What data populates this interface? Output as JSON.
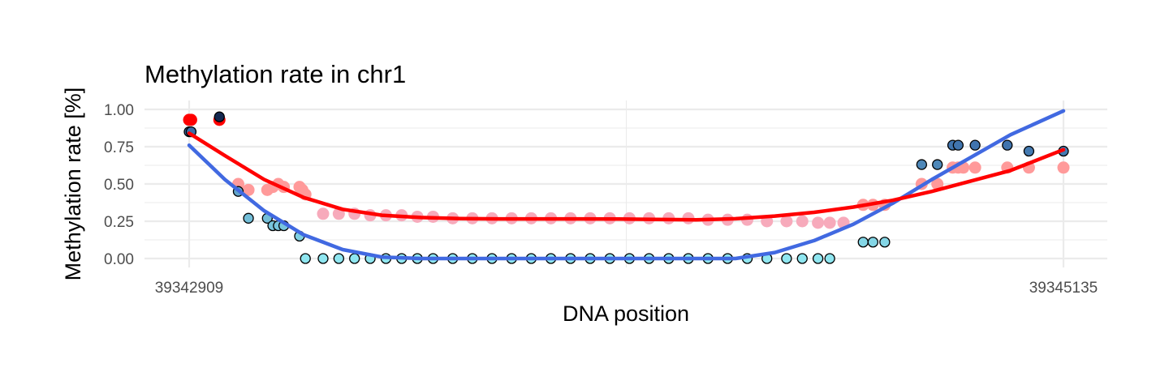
{
  "chart_data": {
    "type": "scatter",
    "title": "Methylation rate in chr1",
    "xlabel": "DNA position",
    "ylabel": "Methylation rate [%]",
    "xlim": [
      39342909,
      39345135
    ],
    "ylim": [
      0,
      1
    ],
    "x_ticks": [
      39342909,
      39345135
    ],
    "y_ticks": [
      "0.00",
      "0.25",
      "0.50",
      "0.75",
      "1.00"
    ],
    "grid": true,
    "legend": "none",
    "colors": {
      "series_a_points": "#ff9a9a",
      "series_a_points_mid": "#f7aabb",
      "series_a_fit": "#ff0000",
      "series_b_points_low": "#8fe6f0",
      "series_b_points_high": "#6aaad4",
      "series_b_fit": "#4169e1",
      "point_outline": "#000000",
      "grid": "#ebebeb"
    },
    "series": [
      {
        "points": [
          [
            39342909,
            0.93
          ],
          [
            39342914,
            0.93
          ],
          [
            39342986,
            0.93
          ],
          [
            39343034,
            0.5
          ],
          [
            39343060,
            0.46
          ],
          [
            39343108,
            0.46
          ],
          [
            39343122,
            0.48
          ],
          [
            39343136,
            0.5
          ],
          [
            39343150,
            0.48
          ],
          [
            39343190,
            0.48
          ],
          [
            39343197,
            0.46
          ],
          [
            39343205,
            0.43
          ],
          [
            39343250,
            0.3
          ],
          [
            39343290,
            0.3
          ],
          [
            39343330,
            0.3
          ],
          [
            39343370,
            0.29
          ],
          [
            39343410,
            0.29
          ],
          [
            39343450,
            0.29
          ],
          [
            39343490,
            0.28
          ],
          [
            39343530,
            0.28
          ],
          [
            39343580,
            0.27
          ],
          [
            39343630,
            0.27
          ],
          [
            39343680,
            0.27
          ],
          [
            39343730,
            0.27
          ],
          [
            39343780,
            0.27
          ],
          [
            39343830,
            0.27
          ],
          [
            39343880,
            0.27
          ],
          [
            39343930,
            0.27
          ],
          [
            39343980,
            0.27
          ],
          [
            39344030,
            0.27
          ],
          [
            39344080,
            0.27
          ],
          [
            39344130,
            0.27
          ],
          [
            39344180,
            0.27
          ],
          [
            39344230,
            0.26
          ],
          [
            39344280,
            0.26
          ],
          [
            39344330,
            0.26
          ],
          [
            39344380,
            0.25
          ],
          [
            39344430,
            0.25
          ],
          [
            39344470,
            0.25
          ],
          [
            39344510,
            0.24
          ],
          [
            39344540,
            0.24
          ],
          [
            39344575,
            0.24
          ],
          [
            39344625,
            0.36
          ],
          [
            39344650,
            0.36
          ],
          [
            39344680,
            0.36
          ],
          [
            39344774,
            0.5
          ],
          [
            39344814,
            0.5
          ],
          [
            39344853,
            0.61
          ],
          [
            39344867,
            0.61
          ],
          [
            39344880,
            0.61
          ],
          [
            39344910,
            0.61
          ],
          [
            39344992,
            0.61
          ],
          [
            39345047,
            0.61
          ],
          [
            39345135,
            0.61
          ]
        ],
        "fit": [
          [
            39342909,
            0.84
          ],
          [
            39343000,
            0.69
          ],
          [
            39343100,
            0.53
          ],
          [
            39343200,
            0.41
          ],
          [
            39343300,
            0.33
          ],
          [
            39343400,
            0.29
          ],
          [
            39343500,
            0.275
          ],
          [
            39343600,
            0.268
          ],
          [
            39343700,
            0.266
          ],
          [
            39343800,
            0.266
          ],
          [
            39343900,
            0.266
          ],
          [
            39344000,
            0.265
          ],
          [
            39344100,
            0.262
          ],
          [
            39344200,
            0.26
          ],
          [
            39344300,
            0.267
          ],
          [
            39344400,
            0.285
          ],
          [
            39344500,
            0.31
          ],
          [
            39344600,
            0.345
          ],
          [
            39344700,
            0.39
          ],
          [
            39344800,
            0.45
          ],
          [
            39344900,
            0.52
          ],
          [
            39345000,
            0.59
          ],
          [
            39345135,
            0.73
          ]
        ]
      },
      {
        "points": [
          [
            39342909,
            0.85
          ],
          [
            39342914,
            0.85
          ],
          [
            39342986,
            0.95
          ],
          [
            39343034,
            0.45
          ],
          [
            39343060,
            0.27
          ],
          [
            39343108,
            0.27
          ],
          [
            39343122,
            0.22
          ],
          [
            39343136,
            0.22
          ],
          [
            39343150,
            0.22
          ],
          [
            39343190,
            0.15
          ],
          [
            39343205,
            0.0
          ],
          [
            39343250,
            0.0
          ],
          [
            39343290,
            0.0
          ],
          [
            39343330,
            0.0
          ],
          [
            39343370,
            0.0
          ],
          [
            39343410,
            0.0
          ],
          [
            39343450,
            0.0
          ],
          [
            39343490,
            0.0
          ],
          [
            39343530,
            0.0
          ],
          [
            39343580,
            0.0
          ],
          [
            39343630,
            0.0
          ],
          [
            39343680,
            0.0
          ],
          [
            39343730,
            0.0
          ],
          [
            39343780,
            0.0
          ],
          [
            39343830,
            0.0
          ],
          [
            39343880,
            0.0
          ],
          [
            39343930,
            0.0
          ],
          [
            39343980,
            0.0
          ],
          [
            39344030,
            0.0
          ],
          [
            39344080,
            0.0
          ],
          [
            39344130,
            0.0
          ],
          [
            39344180,
            0.0
          ],
          [
            39344230,
            0.0
          ],
          [
            39344280,
            0.0
          ],
          [
            39344330,
            0.0
          ],
          [
            39344380,
            0.0
          ],
          [
            39344430,
            0.0
          ],
          [
            39344470,
            0.0
          ],
          [
            39344510,
            0.0
          ],
          [
            39344540,
            0.0
          ],
          [
            39344625,
            0.11
          ],
          [
            39344650,
            0.11
          ],
          [
            39344680,
            0.11
          ],
          [
            39344774,
            0.63
          ],
          [
            39344814,
            0.63
          ],
          [
            39344853,
            0.76
          ],
          [
            39344867,
            0.76
          ],
          [
            39344910,
            0.76
          ],
          [
            39344992,
            0.76
          ],
          [
            39345047,
            0.72
          ],
          [
            39345135,
            0.72
          ]
        ],
        "fit": [
          [
            39342909,
            0.76
          ],
          [
            39343000,
            0.53
          ],
          [
            39343100,
            0.32
          ],
          [
            39343200,
            0.16
          ],
          [
            39343300,
            0.06
          ],
          [
            39343400,
            0.01
          ],
          [
            39343500,
            0.0
          ],
          [
            39343600,
            0.0
          ],
          [
            39343700,
            0.0
          ],
          [
            39343800,
            0.0
          ],
          [
            39343900,
            0.0
          ],
          [
            39344000,
            0.0
          ],
          [
            39344100,
            0.0
          ],
          [
            39344200,
            0.0
          ],
          [
            39344300,
            0.0
          ],
          [
            39344400,
            0.04
          ],
          [
            39344500,
            0.12
          ],
          [
            39344600,
            0.23
          ],
          [
            39344700,
            0.37
          ],
          [
            39344800,
            0.53
          ],
          [
            39344900,
            0.68
          ],
          [
            39345000,
            0.83
          ],
          [
            39345135,
            0.99
          ]
        ]
      }
    ]
  }
}
